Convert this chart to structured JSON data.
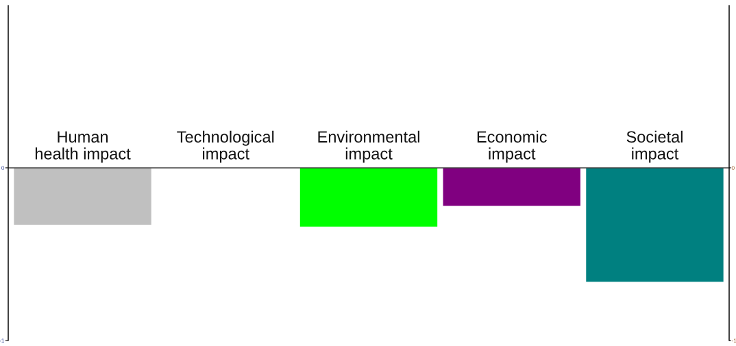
{
  "chart_data": {
    "type": "bar",
    "categories": [
      "Human\nhealth impact",
      "Technological\nimpact",
      "Environmental\nimpact",
      "Economic\nimpact",
      "Societal\nimpact"
    ],
    "values": [
      -0.33,
      0,
      -0.34,
      -0.22,
      -0.66
    ],
    "colors": [
      "#c0c0c0",
      "#ffffff",
      "#00ff00",
      "#800080",
      "#008080"
    ],
    "ylim": [
      -1,
      0.94
    ],
    "yticks": [
      -1,
      0
    ],
    "y2lim": [
      -1,
      0.94
    ],
    "y2ticks": [
      -1,
      0
    ],
    "grid": false,
    "legend": false
  }
}
